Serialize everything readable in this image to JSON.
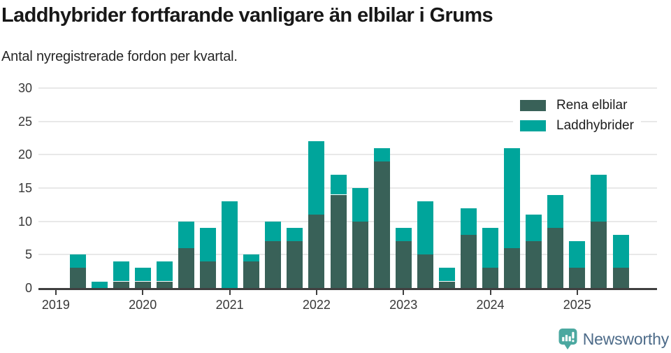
{
  "header": {
    "title": "Laddhybrider fortfarande vanligare än elbilar i Grums",
    "subtitle": "Antal nyregistrerade fordon per kvartal."
  },
  "legend": [
    {
      "label": "Rena elbilar",
      "color": "#396158"
    },
    {
      "label": "Laddhybrider",
      "color": "#00a59b"
    }
  ],
  "footer": {
    "brand": "Newsworthy"
  },
  "colors": {
    "accent_dark": "#396158",
    "accent_teal": "#00a59b",
    "grid": "#e8e8e8",
    "axis": "#3f3f3f",
    "tick_text": "#383838",
    "title_text": "#181818",
    "logo_icon": "#4ba8a0",
    "logo_text": "#4d6b89"
  },
  "chart_data": {
    "type": "bar",
    "stacked": true,
    "title": "Laddhybrider fortfarande vanligare än elbilar i Grums",
    "subtitle": "Antal nyregistrerade fordon per kvartal.",
    "x": [
      "2019 Q2",
      "2019 Q3",
      "2019 Q4",
      "2020 Q1",
      "2020 Q2",
      "2020 Q3",
      "2020 Q4",
      "2021 Q1",
      "2021 Q2",
      "2021 Q3",
      "2021 Q4",
      "2022 Q1",
      "2022 Q2",
      "2022 Q3",
      "2022 Q4",
      "2023 Q1",
      "2023 Q2",
      "2023 Q3",
      "2023 Q4",
      "2024 Q1",
      "2024 Q2",
      "2024 Q3",
      "2024 Q4",
      "2025 Q1",
      "2025 Q2",
      "2025 Q3"
    ],
    "series": [
      {
        "name": "Rena elbilar",
        "color": "#396158",
        "values": [
          3,
          0,
          1,
          1,
          1,
          6,
          4,
          0,
          4,
          7,
          7,
          11,
          14,
          10,
          19,
          7,
          5,
          1,
          8,
          3,
          6,
          7,
          9,
          3,
          10,
          3
        ]
      },
      {
        "name": "Laddhybrider",
        "color": "#00a59b",
        "values": [
          2,
          1,
          3,
          2,
          3,
          4,
          5,
          13,
          1,
          3,
          2,
          11,
          3,
          5,
          2,
          2,
          8,
          2,
          4,
          6,
          15,
          4,
          5,
          4,
          7,
          5
        ]
      }
    ],
    "totals": [
      5,
      1,
      4,
      3,
      4,
      10,
      9,
      13,
      5,
      10,
      9,
      22,
      17,
      15,
      21,
      9,
      13,
      3,
      12,
      9,
      21,
      11,
      14,
      7,
      17,
      8
    ],
    "year_ticks": [
      2019,
      2020,
      2021,
      2022,
      2023,
      2024,
      2025
    ],
    "y_ticks": [
      0,
      5,
      10,
      15,
      20,
      25,
      30
    ],
    "ylim": [
      0,
      30
    ],
    "grid": true,
    "legend_position": "top-right"
  }
}
